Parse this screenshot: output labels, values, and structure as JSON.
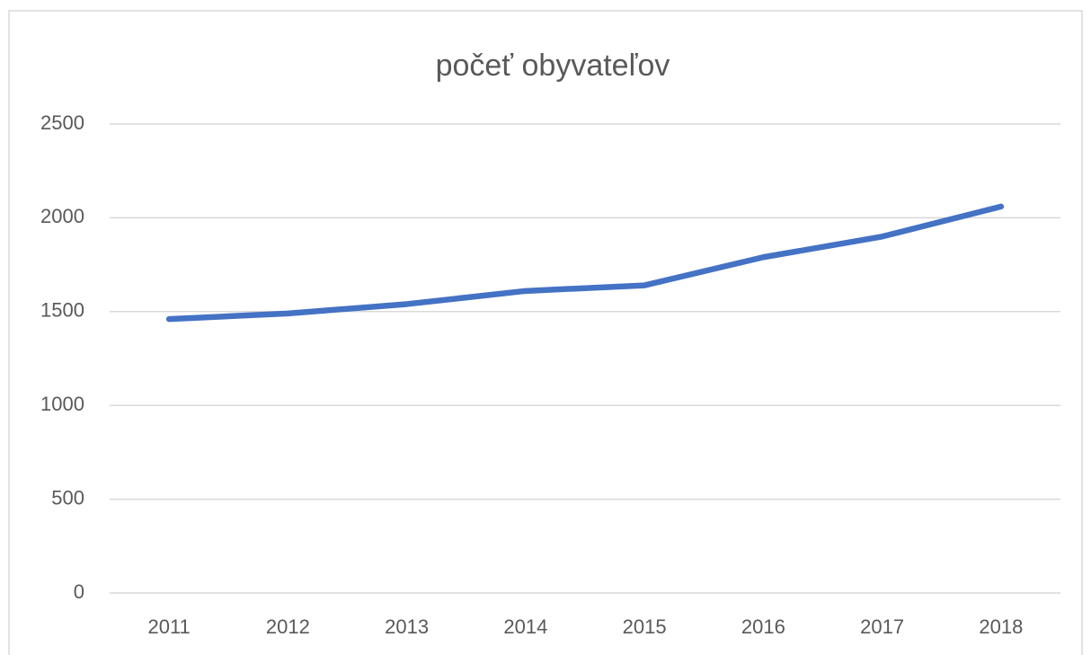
{
  "chart_data": {
    "type": "line",
    "title": "počeť obyvateľov",
    "categories": [
      "2011",
      "2012",
      "2013",
      "2014",
      "2015",
      "2016",
      "2017",
      "2018"
    ],
    "series": [
      {
        "name": "počeť obyvateľov",
        "color": "#4472c4",
        "values": [
          1460,
          1490,
          1540,
          1610,
          1640,
          1790,
          1900,
          2060
        ]
      }
    ],
    "ylim": [
      0,
      2500
    ],
    "yticks": [
      0,
      500,
      1000,
      1500,
      2000,
      2500
    ],
    "grid": true
  }
}
